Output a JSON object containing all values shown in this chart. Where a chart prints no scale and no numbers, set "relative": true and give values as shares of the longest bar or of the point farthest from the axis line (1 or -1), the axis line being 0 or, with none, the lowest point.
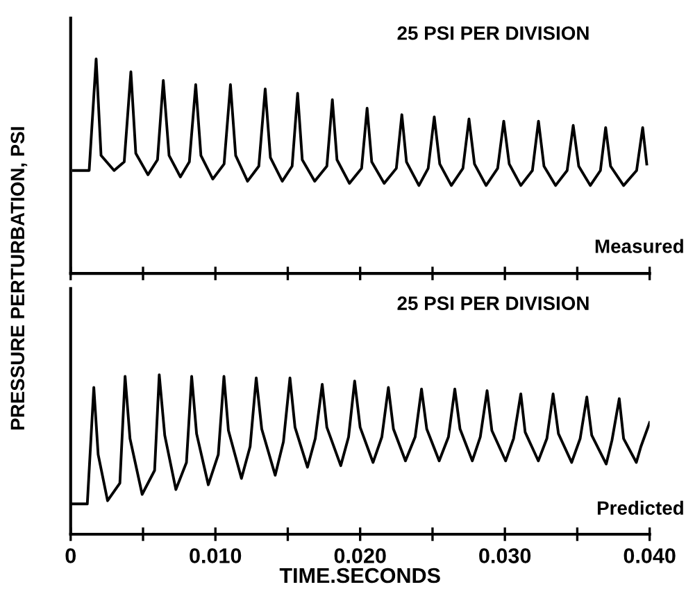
{
  "chart_data": [
    {
      "type": "line",
      "relative": true,
      "ylabel": "PRESSURE PERTURBATION, PSI",
      "annotations": [
        "25 PSI PER DIVISION",
        "Measured"
      ],
      "tick_labels": false,
      "grid": false,
      "marker": "none",
      "line_style": "solid",
      "xlim": [
        0,
        0.04
      ],
      "xticks": [
        {
          "value": 0,
          "label": null
        },
        {
          "value": 0.005,
          "label": null
        },
        {
          "value": 0.01,
          "label": null
        },
        {
          "value": 0.015,
          "label": null
        },
        {
          "value": 0.02,
          "label": null
        },
        {
          "value": 0.025,
          "label": null
        },
        {
          "value": 0.03,
          "label": null
        },
        {
          "value": 0.035,
          "label": null
        },
        {
          "value": 0.04,
          "label": null
        }
      ],
      "series": [
        {
          "color": "#000000",
          "x": [
            0.0002,
            0.00128,
            0.00176,
            0.0021,
            0.003,
            0.0037,
            0.00416,
            0.0045,
            0.00534,
            0.006,
            0.0064,
            0.0068,
            0.00758,
            0.0082,
            0.00864,
            0.009,
            0.00982,
            0.0106,
            0.01104,
            0.0114,
            0.01222,
            0.013,
            0.01344,
            0.0138,
            0.01462,
            0.0153,
            0.01568,
            0.016,
            0.01686,
            0.0177,
            0.01808,
            0.0184,
            0.01926,
            0.0201,
            0.02048,
            0.0208,
            0.02166,
            0.0225,
            0.02288,
            0.0232,
            0.02406,
            0.0247,
            0.02512,
            0.0255,
            0.0263,
            0.0271,
            0.02752,
            0.0279,
            0.0287,
            0.0295,
            0.02992,
            0.0303,
            0.0311,
            0.0319,
            0.03232,
            0.0327,
            0.0335,
            0.0343,
            0.03472,
            0.0351,
            0.0359,
            0.0366,
            0.03696,
            0.0373,
            0.0382,
            0.0391,
            0.03952,
            0.0398
          ],
          "values": [
            0.48,
            0.48,
            1.0,
            0.55,
            0.48,
            0.52,
            0.94,
            0.56,
            0.46,
            0.53,
            0.9,
            0.55,
            0.45,
            0.52,
            0.88,
            0.55,
            0.44,
            0.51,
            0.88,
            0.55,
            0.43,
            0.5,
            0.86,
            0.54,
            0.43,
            0.5,
            0.84,
            0.53,
            0.43,
            0.5,
            0.81,
            0.53,
            0.42,
            0.49,
            0.77,
            0.52,
            0.42,
            0.49,
            0.74,
            0.52,
            0.41,
            0.49,
            0.73,
            0.51,
            0.41,
            0.49,
            0.72,
            0.51,
            0.41,
            0.49,
            0.71,
            0.51,
            0.41,
            0.48,
            0.71,
            0.5,
            0.41,
            0.48,
            0.69,
            0.5,
            0.41,
            0.48,
            0.68,
            0.5,
            0.41,
            0.48,
            0.68,
            0.51
          ]
        }
      ]
    },
    {
      "type": "line",
      "relative": true,
      "xlabel": "TIME.SECONDS",
      "annotations": [
        "25 PSI PER DIVISION",
        "Predicted"
      ],
      "tick_labels": "x",
      "grid": false,
      "marker": "none",
      "line_style": "solid",
      "xlim": [
        0,
        0.04
      ],
      "xticks": [
        {
          "value": 0,
          "label": "0"
        },
        {
          "value": 0.005,
          "label": null
        },
        {
          "value": 0.01,
          "label": "0.010"
        },
        {
          "value": 0.015,
          "label": null
        },
        {
          "value": 0.02,
          "label": "0.020"
        },
        {
          "value": 0.025,
          "label": null
        },
        {
          "value": 0.03,
          "label": "0.030"
        },
        {
          "value": 0.035,
          "label": null
        },
        {
          "value": 0.04,
          "label": "0.040"
        }
      ],
      "series": [
        {
          "color": "#000000",
          "x": [
            0.0001,
            0.00115,
            0.0016,
            0.0019,
            0.00255,
            0.0034,
            0.00376,
            0.0041,
            0.00494,
            0.0058,
            0.00612,
            0.0065,
            0.00727,
            0.008,
            0.00836,
            0.0087,
            0.00951,
            0.0102,
            0.01059,
            0.0109,
            0.0118,
            0.0124,
            0.01282,
            0.0132,
            0.01413,
            0.0147,
            0.01515,
            0.0155,
            0.01636,
            0.0169,
            0.01738,
            0.0177,
            0.01866,
            0.0192,
            0.01962,
            0.02,
            0.02089,
            0.0215,
            0.02195,
            0.0223,
            0.02313,
            0.0238,
            0.02424,
            0.0246,
            0.02546,
            0.0261,
            0.02654,
            0.0269,
            0.02775,
            0.0283,
            0.02877,
            0.0291,
            0.03005,
            0.0306,
            0.0311,
            0.0314,
            0.03231,
            0.0329,
            0.03333,
            0.0337,
            0.03461,
            0.0352,
            0.03566,
            0.036,
            0.037,
            0.0374,
            0.0379,
            0.0382,
            0.03908,
            0.0394,
            0.04
          ],
          "values": [
            0.19,
            0.19,
            0.92,
            0.5,
            0.21,
            0.32,
            0.99,
            0.6,
            0.25,
            0.4,
            1.0,
            0.62,
            0.28,
            0.45,
            0.99,
            0.63,
            0.31,
            0.5,
            0.99,
            0.65,
            0.35,
            0.55,
            0.98,
            0.66,
            0.37,
            0.58,
            0.98,
            0.67,
            0.42,
            0.6,
            0.94,
            0.67,
            0.43,
            0.61,
            0.96,
            0.67,
            0.45,
            0.61,
            0.92,
            0.66,
            0.46,
            0.61,
            0.91,
            0.66,
            0.46,
            0.61,
            0.91,
            0.66,
            0.46,
            0.61,
            0.9,
            0.65,
            0.46,
            0.6,
            0.88,
            0.64,
            0.46,
            0.6,
            0.88,
            0.63,
            0.45,
            0.6,
            0.86,
            0.62,
            0.44,
            0.59,
            0.85,
            0.6,
            0.45,
            0.55,
            0.7
          ]
        }
      ]
    }
  ]
}
